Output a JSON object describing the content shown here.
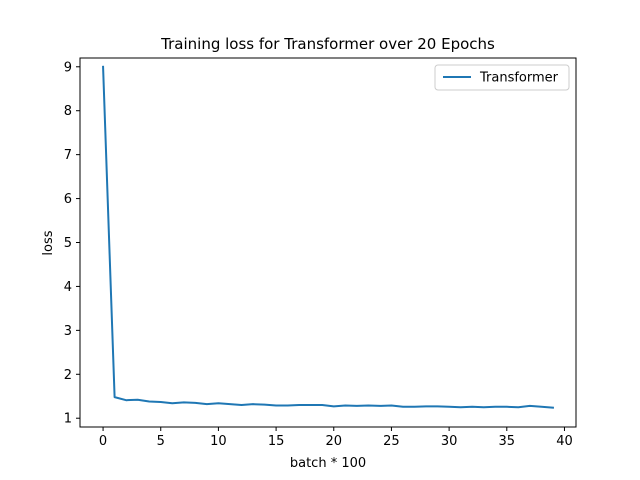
{
  "chart_data": {
    "type": "line",
    "title": "Training loss for Transformer over 20 Epochs",
    "xlabel": "batch * 100",
    "ylabel": "loss",
    "xlim": [
      -2,
      41
    ],
    "ylim": [
      0.8,
      9.2
    ],
    "xticks": [
      0,
      5,
      10,
      15,
      20,
      25,
      30,
      35,
      40
    ],
    "yticks": [
      1,
      2,
      3,
      4,
      5,
      6,
      7,
      8,
      9
    ],
    "grid": false,
    "legend_position": "top-right",
    "series": [
      {
        "name": "Transformer",
        "color": "#1f77b4",
        "x": [
          0,
          1,
          2,
          3,
          4,
          5,
          6,
          7,
          8,
          9,
          10,
          11,
          12,
          13,
          14,
          15,
          16,
          17,
          18,
          19,
          20,
          21,
          22,
          23,
          24,
          25,
          26,
          27,
          28,
          29,
          30,
          31,
          32,
          33,
          34,
          35,
          36,
          37,
          38,
          39
        ],
        "y": [
          9.0,
          1.48,
          1.41,
          1.42,
          1.38,
          1.37,
          1.34,
          1.36,
          1.35,
          1.32,
          1.34,
          1.32,
          1.3,
          1.32,
          1.31,
          1.29,
          1.29,
          1.3,
          1.3,
          1.3,
          1.27,
          1.29,
          1.28,
          1.29,
          1.28,
          1.29,
          1.26,
          1.26,
          1.27,
          1.27,
          1.26,
          1.25,
          1.26,
          1.25,
          1.26,
          1.26,
          1.25,
          1.28,
          1.26,
          1.24
        ]
      }
    ]
  }
}
